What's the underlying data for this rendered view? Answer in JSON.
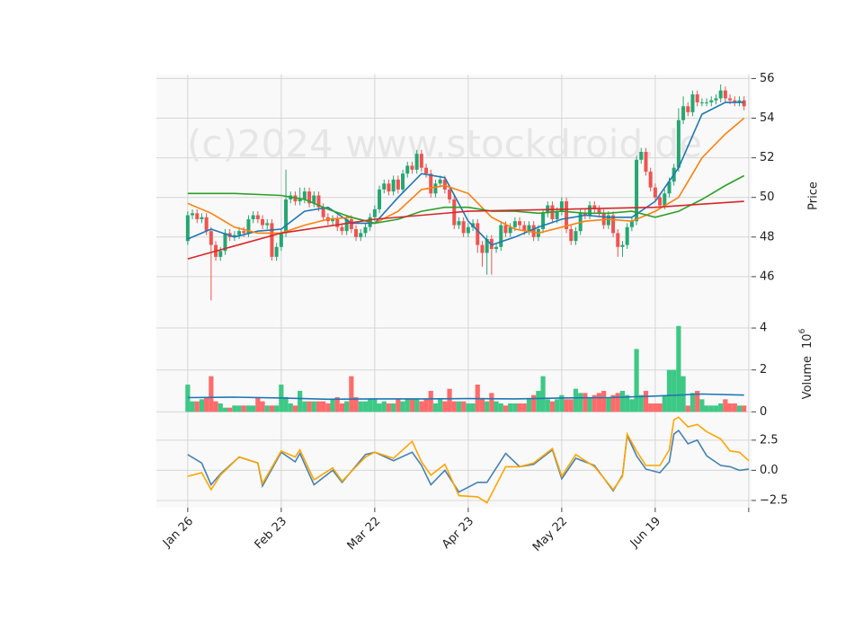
{
  "chart_data": {
    "type": "candlestick",
    "watermark": "(c)2024 www.stockdroid.de",
    "xlim": [
      -6.7,
      120.6
    ],
    "xticks": [
      {
        "value": 0,
        "label": "Jan 26"
      },
      {
        "value": 20,
        "label": "Feb 23"
      },
      {
        "value": 40,
        "label": "Mar 22"
      },
      {
        "value": 60,
        "label": "Apr 23"
      },
      {
        "value": 80,
        "label": "May 22"
      },
      {
        "value": 100,
        "label": "Jun 19"
      },
      {
        "value": 120,
        "label": null
      }
    ],
    "grid": true,
    "price": {
      "ylabel": "Price",
      "ylim": [
        44,
        56.2
      ],
      "yticks": [
        46,
        48,
        50,
        52,
        54,
        56
      ],
      "up_color": "#26a671",
      "down_color": "#ef5350",
      "open": [
        47.8,
        49.1,
        49.2,
        48.9,
        49.0,
        48.3,
        47.6,
        47.0,
        47.3,
        48.2,
        48.0,
        48.1,
        48.3,
        48.2,
        48.9,
        49.1,
        48.9,
        48.6,
        48.7,
        47.0,
        47.5,
        48.2,
        49.9,
        50.1,
        49.8,
        49.9,
        50.3,
        49.7,
        50.1,
        49.5,
        49.0,
        48.8,
        48.9,
        48.5,
        48.3,
        48.9,
        48.4,
        48.0,
        48.2,
        48.5,
        49.0,
        49.4,
        50.4,
        50.7,
        50.3,
        50.9,
        50.4,
        51.2,
        51.6,
        51.4,
        52.2,
        51.5,
        51.2,
        50.2,
        50.7,
        50.9,
        50.4,
        49.9,
        48.6,
        48.8,
        48.2,
        48.5,
        48.7,
        47.6,
        47.2,
        47.9,
        47.4,
        47.5,
        48.6,
        48.2,
        48.5,
        48.8,
        48.6,
        48.3,
        48.6,
        48.0,
        48.4,
        49.2,
        49.6,
        48.9,
        49.3,
        49.8,
        48.4,
        47.8,
        48.3,
        49.2,
        49.1,
        49.6,
        49.4,
        49.2,
        48.6,
        49.1,
        48.2,
        47.5,
        47.6,
        48.5,
        48.8,
        51.9,
        52.3,
        51.3,
        50.5,
        50.0,
        49.6,
        50.2,
        50.8,
        51.5,
        53.9,
        54.6,
        54.3,
        55.2,
        54.8,
        54.8,
        54.8,
        54.9,
        55.0,
        55.4,
        55.0,
        54.9,
        54.8,
        54.9
      ],
      "high": [
        49.3,
        49.4,
        49.4,
        49.2,
        49.2,
        48.5,
        47.8,
        47.5,
        48.4,
        48.4,
        48.3,
        48.5,
        48.5,
        49.1,
        49.3,
        49.3,
        49.1,
        48.9,
        48.9,
        47.7,
        48.4,
        51.4,
        50.3,
        50.3,
        50.5,
        50.5,
        50.5,
        50.3,
        50.3,
        49.7,
        49.2,
        49.1,
        49.1,
        48.7,
        49.1,
        49.1,
        48.6,
        48.4,
        48.7,
        49.2,
        49.6,
        50.6,
        50.9,
        50.9,
        51.1,
        51.1,
        51.4,
        51.8,
        51.8,
        52.4,
        52.4,
        51.7,
        51.4,
        50.9,
        51.1,
        51.1,
        50.6,
        50.1,
        49.0,
        49.0,
        48.7,
        48.9,
        48.9,
        47.8,
        48.1,
        48.1,
        47.7,
        48.8,
        48.8,
        48.7,
        49.0,
        49.0,
        48.8,
        48.8,
        48.8,
        48.6,
        49.4,
        49.8,
        49.8,
        49.5,
        50.0,
        50.0,
        48.6,
        48.5,
        49.4,
        49.4,
        49.8,
        49.8,
        49.6,
        49.4,
        49.3,
        49.3,
        48.4,
        47.8,
        48.7,
        49.0,
        52.1,
        52.5,
        52.5,
        51.5,
        50.7,
        50.2,
        50.4,
        51.0,
        51.7,
        54.5,
        55.1,
        54.8,
        55.4,
        55.4,
        55.0,
        55.0,
        55.1,
        55.2,
        55.7,
        55.6,
        55.2,
        55.1,
        55.1,
        55.1
      ],
      "low": [
        47.6,
        48.9,
        48.7,
        48.7,
        48.1,
        44.8,
        46.8,
        46.8,
        47.1,
        47.8,
        47.8,
        47.9,
        48.0,
        48.0,
        48.7,
        48.7,
        48.4,
        48.4,
        46.8,
        46.8,
        47.3,
        48.0,
        49.7,
        49.6,
        49.6,
        49.7,
        49.5,
        49.5,
        49.3,
        48.8,
        48.6,
        48.6,
        48.3,
        48.1,
        48.1,
        48.2,
        47.8,
        47.8,
        48.0,
        48.3,
        48.8,
        49.2,
        50.2,
        50.1,
        50.1,
        50.2,
        50.2,
        51.0,
        51.2,
        51.2,
        51.3,
        51.0,
        50.0,
        50.0,
        50.5,
        50.2,
        49.7,
        48.4,
        48.4,
        48.0,
        48.0,
        48.3,
        47.2,
        46.5,
        46.1,
        46.1,
        47.2,
        47.3,
        48.0,
        48.0,
        48.3,
        48.4,
        48.1,
        48.1,
        47.8,
        47.8,
        48.2,
        49.0,
        48.7,
        48.7,
        49.1,
        48.2,
        47.6,
        47.6,
        48.1,
        48.9,
        48.9,
        49.2,
        49.0,
        48.4,
        48.4,
        48.0,
        47.0,
        47.0,
        47.4,
        48.3,
        48.6,
        51.7,
        51.1,
        50.3,
        49.8,
        49.4,
        49.4,
        50.0,
        50.6,
        51.3,
        53.7,
        54.1,
        54.1,
        54.6,
        54.6,
        54.6,
        54.6,
        54.7,
        54.8,
        54.8,
        54.7,
        54.6,
        54.6,
        54.4
      ],
      "close": [
        49.1,
        49.2,
        48.9,
        49.0,
        48.3,
        47.6,
        47.0,
        47.3,
        48.2,
        48.0,
        48.1,
        48.3,
        48.2,
        48.9,
        49.1,
        48.9,
        48.6,
        48.7,
        47.0,
        47.5,
        48.2,
        49.9,
        50.1,
        49.8,
        49.9,
        50.3,
        49.7,
        50.1,
        49.5,
        49.0,
        48.8,
        48.9,
        48.5,
        48.3,
        48.9,
        48.4,
        48.0,
        48.2,
        48.5,
        49.0,
        49.4,
        50.4,
        50.7,
        50.3,
        50.9,
        50.4,
        51.2,
        51.6,
        51.4,
        52.2,
        51.5,
        51.2,
        50.2,
        50.7,
        50.9,
        50.4,
        49.9,
        48.6,
        48.8,
        48.2,
        48.5,
        48.7,
        47.6,
        47.2,
        47.9,
        47.4,
        47.5,
        48.6,
        48.2,
        48.5,
        48.8,
        48.6,
        48.3,
        48.6,
        48.0,
        48.4,
        49.2,
        49.6,
        48.9,
        49.3,
        49.8,
        48.4,
        47.8,
        48.3,
        49.2,
        49.1,
        49.6,
        49.4,
        49.2,
        48.6,
        49.1,
        48.2,
        47.5,
        47.6,
        48.5,
        48.8,
        51.9,
        52.3,
        51.3,
        50.5,
        50.0,
        49.6,
        50.2,
        50.8,
        51.5,
        53.9,
        54.6,
        54.3,
        55.2,
        54.8,
        54.8,
        54.8,
        54.9,
        55.0,
        55.4,
        55.0,
        54.9,
        54.8,
        54.9,
        54.6
      ],
      "lines": [
        {
          "color": "#1f77b4",
          "x": [
            0,
            5,
            10,
            15,
            20,
            25,
            30,
            35,
            40,
            45,
            50,
            55,
            60,
            65,
            70,
            75,
            80,
            85,
            90,
            95,
            100,
            105,
            110,
            115,
            119
          ],
          "values": [
            47.9,
            48.4,
            48.0,
            48.3,
            48.4,
            49.3,
            49.5,
            48.7,
            48.7,
            50.0,
            51.2,
            51.0,
            48.8,
            47.6,
            48.0,
            48.5,
            48.9,
            49.1,
            49.0,
            49.0,
            49.8,
            51.5,
            54.2,
            54.8,
            54.8
          ]
        },
        {
          "color": "#ff7f0e",
          "x": [
            0,
            5,
            10,
            15,
            20,
            25,
            30,
            35,
            40,
            45,
            50,
            55,
            60,
            65,
            70,
            75,
            80,
            85,
            90,
            95,
            100,
            105,
            110,
            115,
            119
          ],
          "values": [
            49.7,
            49.2,
            48.5,
            48.2,
            48.2,
            48.6,
            48.9,
            49.0,
            48.7,
            49.3,
            50.4,
            50.6,
            50.2,
            49.0,
            48.4,
            48.2,
            48.5,
            48.8,
            48.9,
            48.8,
            49.3,
            50.0,
            52.0,
            53.2,
            54.0
          ]
        },
        {
          "color": "#2ca02c",
          "x": [
            0,
            10,
            20,
            25,
            30,
            35,
            40,
            45,
            50,
            55,
            60,
            65,
            70,
            75,
            80,
            85,
            90,
            95,
            100,
            105,
            110,
            115,
            119
          ],
          "values": [
            50.2,
            50.2,
            50.1,
            49.9,
            49.4,
            49.0,
            48.7,
            48.9,
            49.3,
            49.5,
            49.5,
            49.3,
            49.3,
            49.2,
            49.3,
            49.2,
            49.2,
            49.3,
            49.0,
            49.3,
            49.9,
            50.6,
            51.1
          ]
        },
        {
          "color": "#d62728",
          "x": [
            0,
            20,
            40,
            60,
            80,
            100,
            119
          ],
          "values": [
            46.9,
            48.2,
            48.9,
            49.3,
            49.4,
            49.5,
            49.8
          ]
        }
      ]
    },
    "volume": {
      "ylabel": "Volume",
      "scale_base": "10",
      "scale_exponent": "6",
      "ylim": [
        -0.2,
        4.56
      ],
      "yticks": [
        0,
        2,
        4
      ],
      "up_color": "#3dc985",
      "down_color": "#ff6b6b",
      "values": [
        1.3,
        0.5,
        0.5,
        0.6,
        0.7,
        1.7,
        0.5,
        0.4,
        0.2,
        0.2,
        0.3,
        0.3,
        0.3,
        0.3,
        0.3,
        0.7,
        0.5,
        0.3,
        0.3,
        0.3,
        1.3,
        0.7,
        0.4,
        0.3,
        1.0,
        0.5,
        0.5,
        0.5,
        0.5,
        0.5,
        0.4,
        0.6,
        0.7,
        0.4,
        0.5,
        1.7,
        0.7,
        0.5,
        0.5,
        0.6,
        0.6,
        0.4,
        0.5,
        0.4,
        0.4,
        0.6,
        0.5,
        0.6,
        0.6,
        0.6,
        0.5,
        0.6,
        1.0,
        0.4,
        0.6,
        0.5,
        1.1,
        0.5,
        0.5,
        0.5,
        0.4,
        0.4,
        1.3,
        0.6,
        0.5,
        0.9,
        0.5,
        0.4,
        0.3,
        0.4,
        0.4,
        0.4,
        0.4,
        0.6,
        0.8,
        1.0,
        1.7,
        0.6,
        0.5,
        0.6,
        0.8,
        0.6,
        0.6,
        1.1,
        0.9,
        0.9,
        0.7,
        0.8,
        0.9,
        1.0,
        0.7,
        0.8,
        0.9,
        1.0,
        0.8,
        0.6,
        3.0,
        0.8,
        1.0,
        0.4,
        0.4,
        0.4,
        0.8,
        2.0,
        2.0,
        4.1,
        1.7,
        0.3,
        0.9,
        1.0,
        0.6,
        0.3,
        0.3,
        0.3,
        0.4,
        0.6,
        0.4,
        0.4,
        0.3,
        0.3
      ],
      "line": {
        "color": "#1f77b4",
        "x": [
          0,
          10,
          20,
          30,
          40,
          50,
          60,
          70,
          80,
          90,
          100,
          110,
          119
        ],
        "values": [
          0.68,
          0.7,
          0.66,
          0.6,
          0.62,
          0.62,
          0.63,
          0.62,
          0.66,
          0.68,
          0.75,
          0.85,
          0.8
        ]
      }
    },
    "oscillator": {
      "ylim": [
        -3.1,
        4.5
      ],
      "yticks": [
        {
          "value": -2.5,
          "label": "−2.5"
        },
        {
          "value": 0,
          "label": "0.0"
        },
        2.5
      ],
      "lines": [
        {
          "color": "#4682b4",
          "x": [
            0,
            3,
            5,
            7,
            11,
            15,
            16,
            20,
            23,
            24,
            27,
            31,
            33,
            38,
            40,
            44,
            48,
            50,
            52,
            55,
            58,
            62,
            64,
            68,
            71,
            74,
            78,
            80,
            83,
            87,
            91,
            93,
            94,
            96,
            98,
            101,
            103,
            104,
            105,
            107,
            109,
            111,
            114,
            116,
            118,
            120
          ],
          "values": [
            1.3,
            0.6,
            -1.2,
            -0.3,
            1.1,
            0.6,
            -1.3,
            1.5,
            0.7,
            1.4,
            -1.2,
            0.0,
            -1.0,
            1.3,
            1.5,
            0.8,
            1.5,
            0.4,
            -1.2,
            0.0,
            -1.8,
            -1.0,
            -1.0,
            1.4,
            0.3,
            0.5,
            1.7,
            -0.7,
            1.0,
            0.4,
            -1.7,
            -0.4,
            2.9,
            1.2,
            0.1,
            -0.2,
            0.7,
            3.0,
            3.3,
            2.2,
            2.5,
            1.2,
            0.4,
            0.3,
            0.0,
            0.1
          ]
        },
        {
          "color": "#ffa500",
          "x": [
            0,
            3,
            5,
            7,
            11,
            15,
            16,
            20,
            23,
            24,
            27,
            31,
            33,
            38,
            40,
            44,
            48,
            50,
            52,
            55,
            58,
            62,
            64,
            68,
            71,
            74,
            78,
            80,
            83,
            87,
            91,
            93,
            94,
            96,
            98,
            101,
            103,
            104,
            105,
            107,
            109,
            111,
            114,
            116,
            118,
            120
          ],
          "values": [
            -0.5,
            -0.2,
            -1.6,
            -0.4,
            1.1,
            0.6,
            -1.1,
            1.6,
            1.1,
            1.7,
            -0.8,
            0.2,
            -0.9,
            1.1,
            1.5,
            1.0,
            2.4,
            0.7,
            -0.4,
            0.5,
            -2.1,
            -2.2,
            -2.7,
            0.3,
            0.3,
            0.6,
            1.8,
            -0.5,
            1.3,
            0.3,
            -1.6,
            -0.5,
            3.0,
            1.6,
            0.4,
            0.4,
            1.7,
            4.2,
            4.4,
            3.6,
            3.8,
            3.2,
            2.6,
            1.6,
            1.5,
            0.8
          ]
        }
      ]
    }
  }
}
